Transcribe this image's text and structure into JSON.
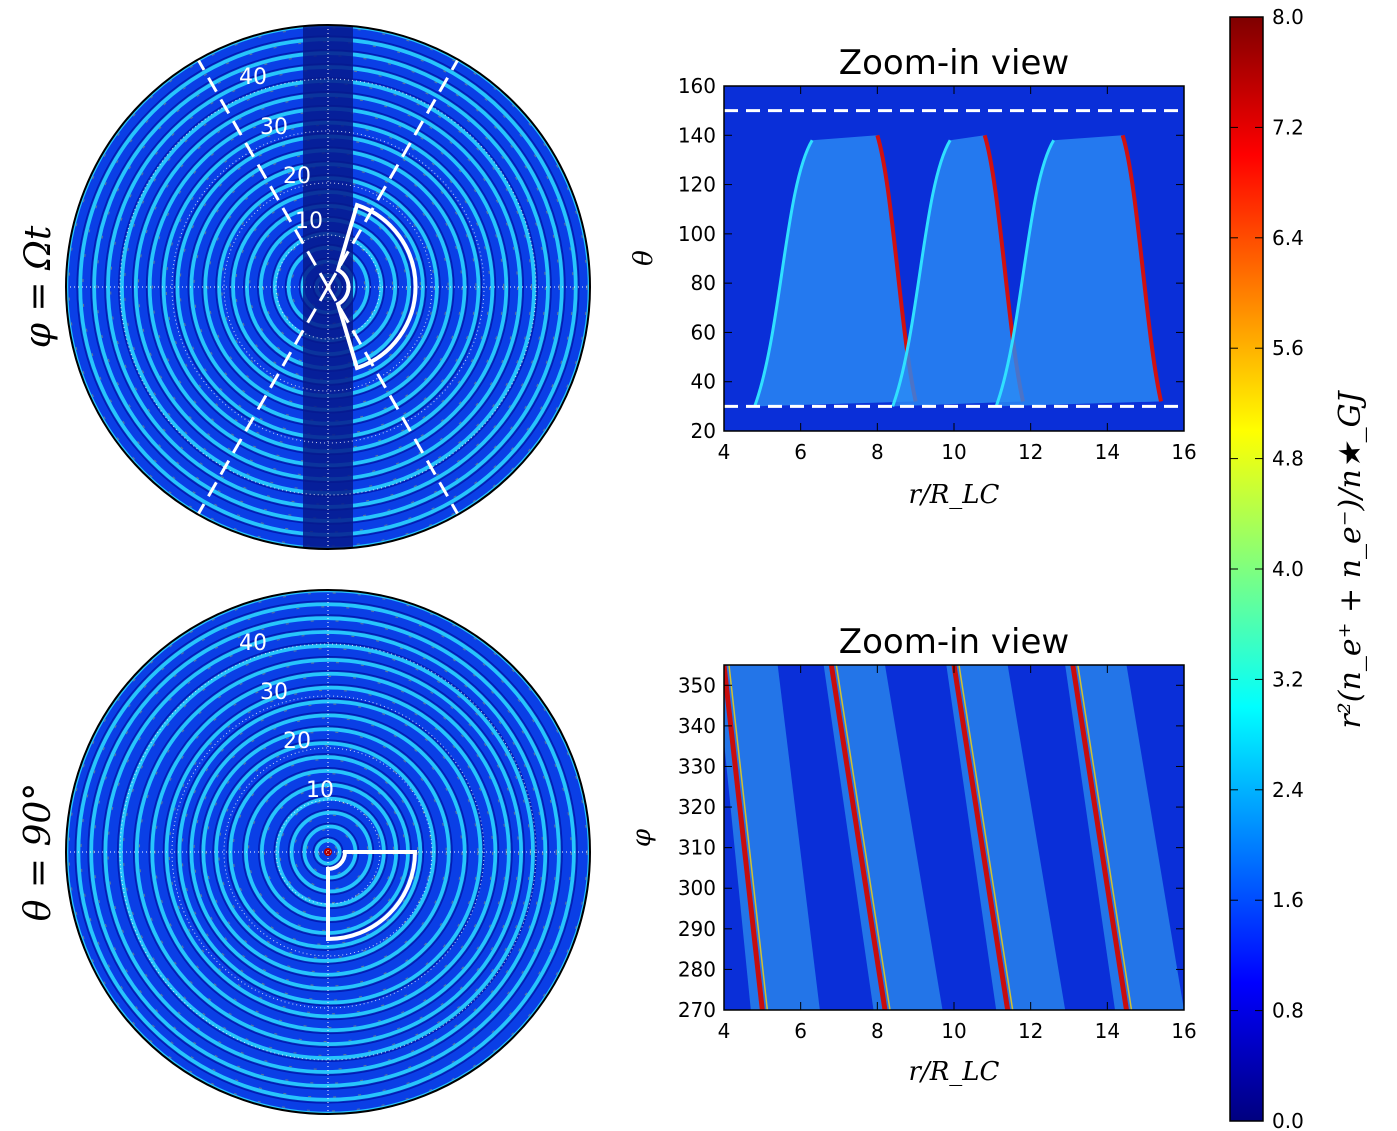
{
  "colormap": {
    "name": "jet",
    "stops": [
      "#00007f",
      "#0000ff",
      "#007fff",
      "#00ffff",
      "#7fff7f",
      "#ffff00",
      "#ff7f00",
      "#ff0000",
      "#7f0000"
    ]
  },
  "chart_data": [
    {
      "type": "heatmap",
      "panel": "polar-meridional",
      "ylabel": "φ = Ωt",
      "ring_labels": [
        "10",
        "20",
        "30",
        "40"
      ],
      "ring_values": [
        10,
        20,
        30,
        40
      ],
      "r_max": 50,
      "zoom_sector": {
        "r": [
          4,
          16
        ],
        "theta": [
          30,
          150
        ]
      },
      "dashed_theta": [
        30,
        150
      ],
      "grid": true
    },
    {
      "type": "heatmap",
      "panel": "zoom-meridional",
      "title": "Zoom-in view",
      "xlabel": "r/R_LC",
      "ylabel": "θ",
      "xlim": [
        4,
        16
      ],
      "ylim": [
        20,
        160
      ],
      "x_ticks": [
        "4",
        "6",
        "8",
        "10",
        "12",
        "14",
        "16"
      ],
      "y_ticks": [
        "20",
        "40",
        "60",
        "80",
        "100",
        "120",
        "140",
        "160"
      ],
      "dashed_lines_theta": [
        30,
        150
      ]
    },
    {
      "type": "heatmap",
      "panel": "polar-equatorial",
      "ylabel": "θ = 90°",
      "ring_labels": [
        "10",
        "20",
        "30",
        "40"
      ],
      "ring_values": [
        10,
        20,
        30,
        40
      ],
      "r_max": 50,
      "zoom_sector": {
        "r": [
          4,
          16
        ],
        "phi": [
          270,
          355
        ]
      },
      "grid": true
    },
    {
      "type": "heatmap",
      "panel": "zoom-equatorial",
      "title": "Zoom-in view",
      "xlabel": "r/R_LC",
      "ylabel": "φ",
      "xlim": [
        4,
        16
      ],
      "ylim": [
        270,
        355
      ],
      "x_ticks": [
        "4",
        "6",
        "8",
        "10",
        "12",
        "14",
        "16"
      ],
      "y_ticks": [
        "270",
        "280",
        "290",
        "300",
        "310",
        "320",
        "330",
        "340",
        "350"
      ]
    },
    {
      "type": "colorbar",
      "label": "r²(n_e⁺ + n_e⁻)/n★_GJ",
      "range": [
        0.0,
        8.0
      ],
      "ticks": [
        "0.0",
        "0.8",
        "1.6",
        "2.4",
        "3.2",
        "4.0",
        "4.8",
        "5.6",
        "6.4",
        "7.2",
        "8.0"
      ]
    }
  ]
}
